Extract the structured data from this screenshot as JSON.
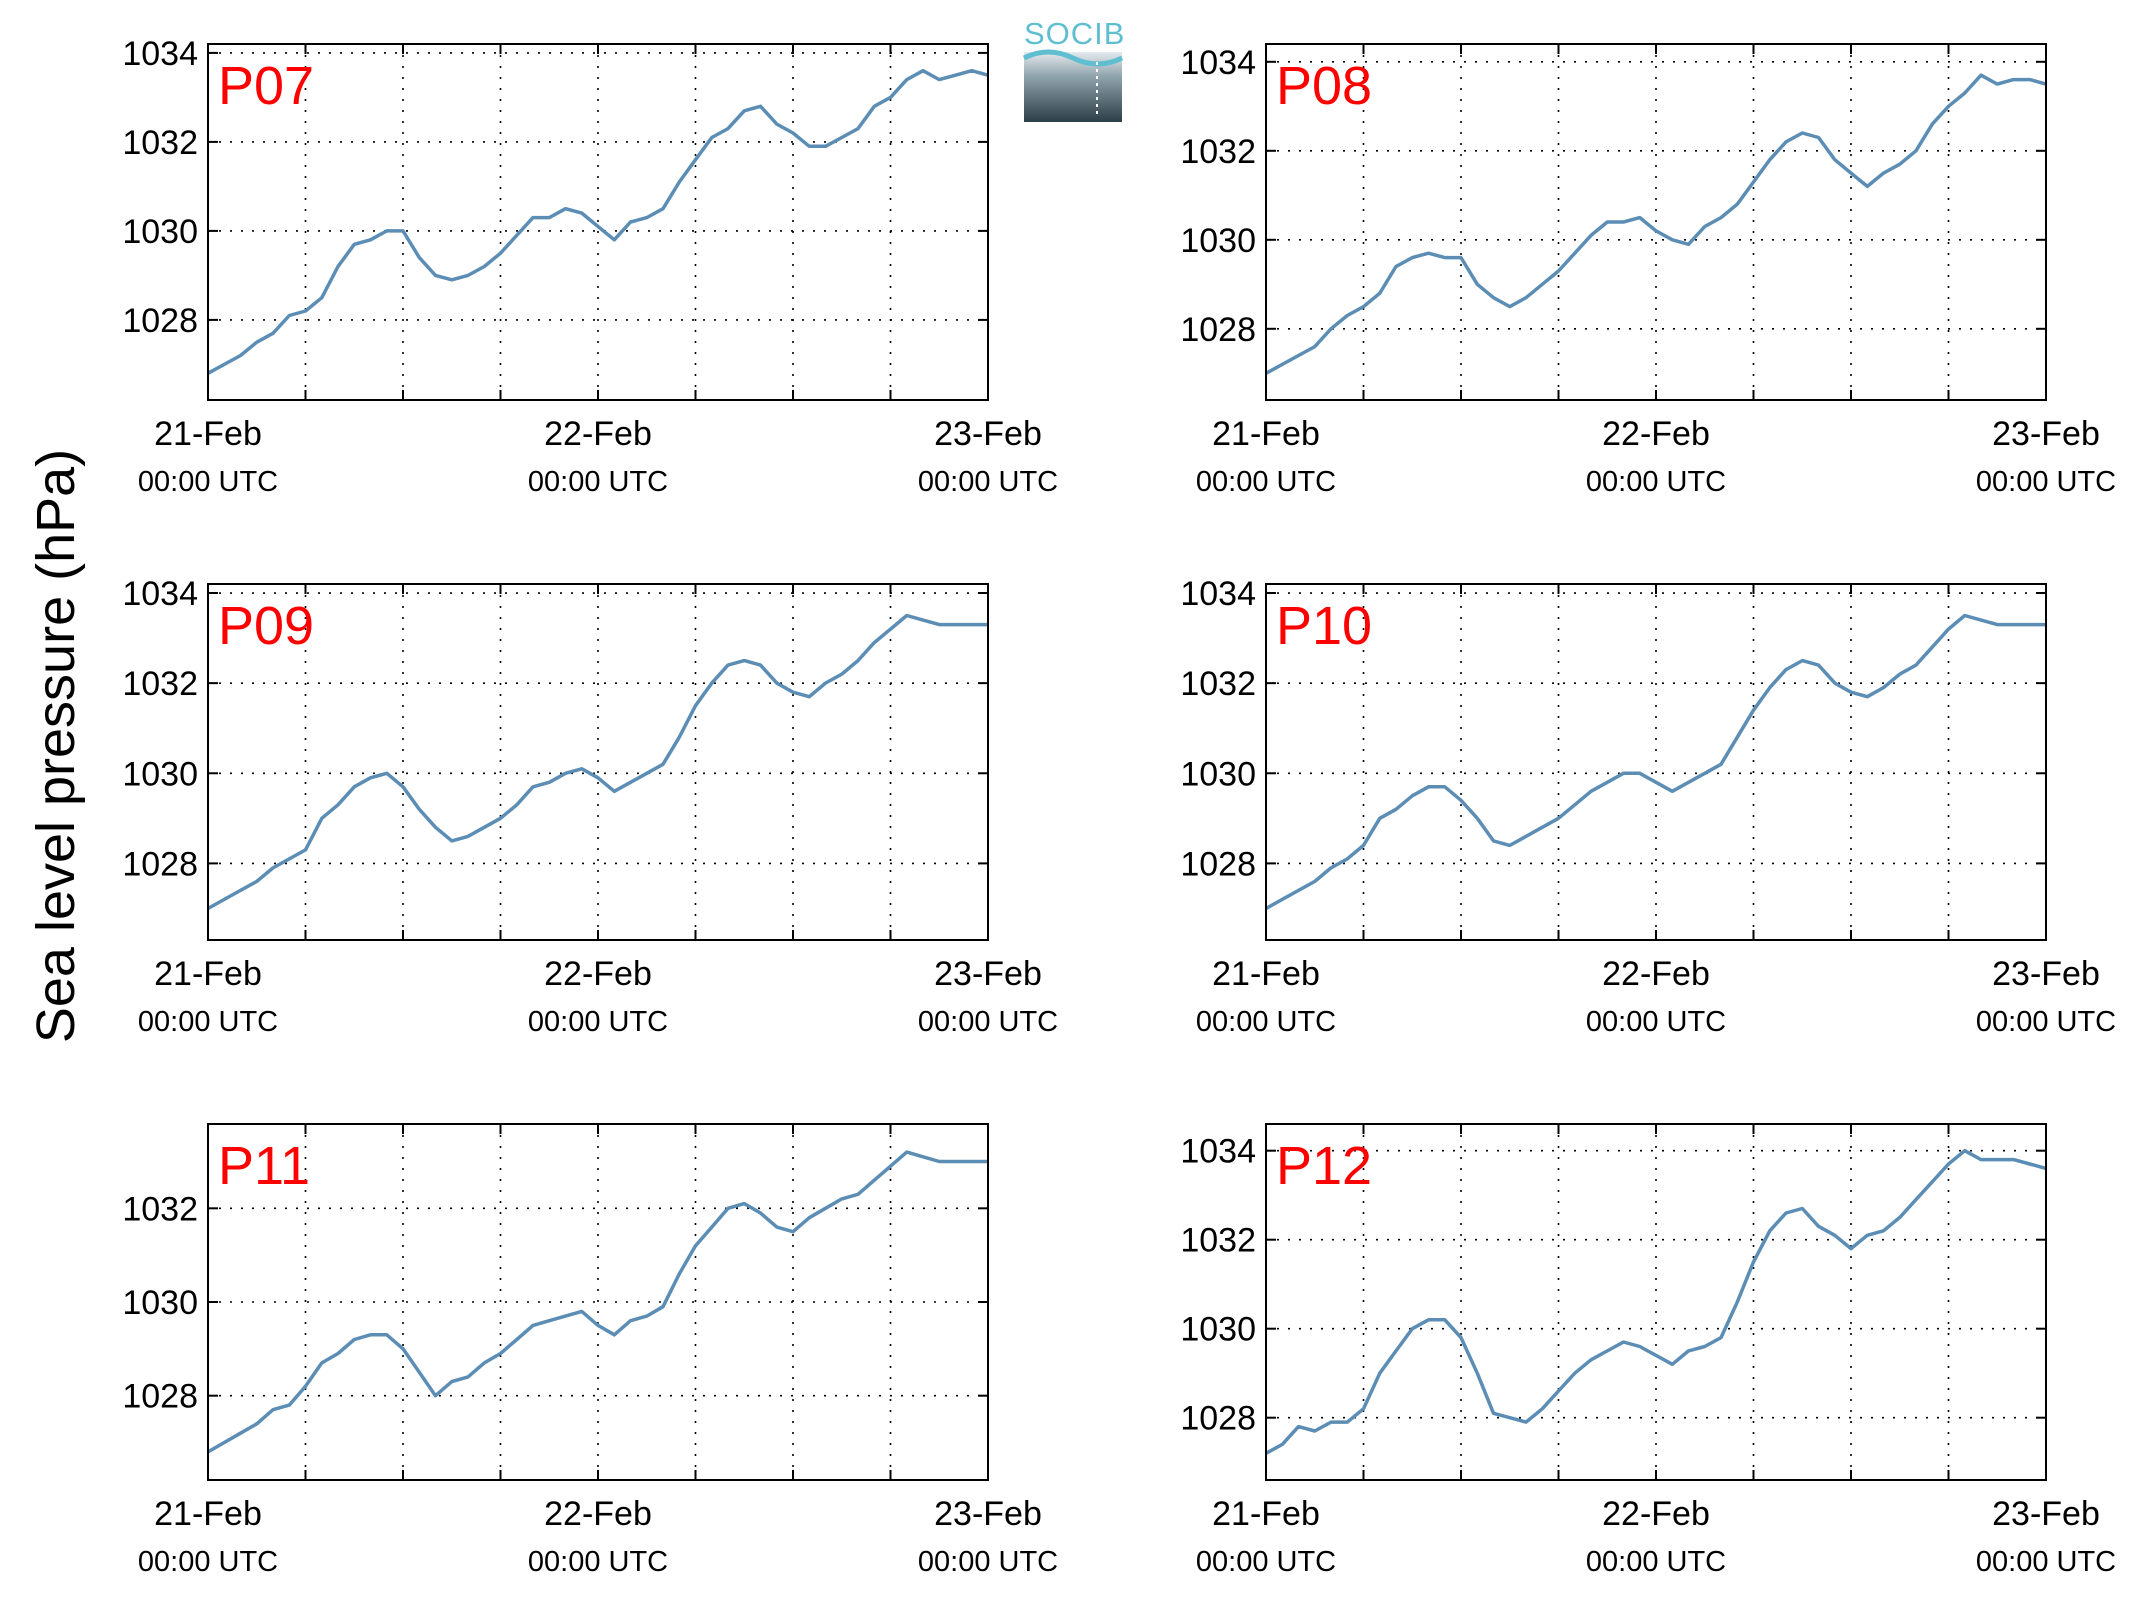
{
  "figure": {
    "ylabel": "Sea level pressure (hPa)",
    "logo_text": "SOCIB",
    "line_color": "#5b8db5",
    "label_color": "#ff0000"
  },
  "chart_data": [
    {
      "type": "line",
      "panel": "P07",
      "x_ticks": [
        {
          "date": "21-Feb",
          "time": "00:00 UTC"
        },
        {
          "date": "22-Feb",
          "time": "00:00 UTC"
        },
        {
          "date": "23-Feb",
          "time": "00:00 UTC"
        }
      ],
      "y_ticks": [
        1028,
        1030,
        1032,
        1034
      ],
      "xlim": [
        0,
        48
      ],
      "ylim": [
        1026.2,
        1034.2
      ],
      "grid": true,
      "series": [
        {
          "x": [
            0,
            1,
            2,
            3,
            4,
            5,
            6,
            7,
            8,
            9,
            10,
            11,
            12,
            13,
            14,
            15,
            16,
            17,
            18,
            19,
            20,
            21,
            22,
            23,
            24,
            25,
            26,
            27,
            28,
            29,
            30,
            31,
            32,
            33,
            34,
            35,
            36,
            37,
            38,
            39,
            40,
            41,
            42,
            43,
            44,
            45,
            46,
            47,
            48
          ],
          "y": [
            1026.8,
            1027.0,
            1027.2,
            1027.5,
            1027.7,
            1028.1,
            1028.2,
            1028.5,
            1029.2,
            1029.7,
            1029.8,
            1030.0,
            1030.0,
            1029.4,
            1029.0,
            1028.9,
            1029.0,
            1029.2,
            1029.5,
            1029.9,
            1030.3,
            1030.3,
            1030.5,
            1030.4,
            1030.1,
            1029.8,
            1030.2,
            1030.3,
            1030.5,
            1031.1,
            1031.6,
            1032.1,
            1032.3,
            1032.7,
            1032.8,
            1032.4,
            1032.2,
            1031.9,
            1031.9,
            1032.1,
            1032.3,
            1032.8,
            1033.0,
            1033.4,
            1033.6,
            1033.4,
            1033.5,
            1033.6,
            1033.5
          ]
        }
      ]
    },
    {
      "type": "line",
      "panel": "P08",
      "x_ticks": [
        {
          "date": "21-Feb",
          "time": "00:00 UTC"
        },
        {
          "date": "22-Feb",
          "time": "00:00 UTC"
        },
        {
          "date": "23-Feb",
          "time": "00:00 UTC"
        }
      ],
      "y_ticks": [
        1028,
        1030,
        1032,
        1034
      ],
      "xlim": [
        0,
        48
      ],
      "ylim": [
        1026.4,
        1034.4
      ],
      "grid": true,
      "series": [
        {
          "x": [
            0,
            1,
            2,
            3,
            4,
            5,
            6,
            7,
            8,
            9,
            10,
            11,
            12,
            13,
            14,
            15,
            16,
            17,
            18,
            19,
            20,
            21,
            22,
            23,
            24,
            25,
            26,
            27,
            28,
            29,
            30,
            31,
            32,
            33,
            34,
            35,
            36,
            37,
            38,
            39,
            40,
            41,
            42,
            43,
            44,
            45,
            46,
            47,
            48
          ],
          "y": [
            1027.0,
            1027.2,
            1027.4,
            1027.6,
            1028.0,
            1028.3,
            1028.5,
            1028.8,
            1029.4,
            1029.6,
            1029.7,
            1029.6,
            1029.6,
            1029.0,
            1028.7,
            1028.5,
            1028.7,
            1029.0,
            1029.3,
            1029.7,
            1030.1,
            1030.4,
            1030.4,
            1030.5,
            1030.2,
            1030.0,
            1029.9,
            1030.3,
            1030.5,
            1030.8,
            1031.3,
            1031.8,
            1032.2,
            1032.4,
            1032.3,
            1031.8,
            1031.5,
            1031.2,
            1031.5,
            1031.7,
            1032.0,
            1032.6,
            1033.0,
            1033.3,
            1033.7,
            1033.5,
            1033.6,
            1033.6,
            1033.5
          ]
        }
      ]
    },
    {
      "type": "line",
      "panel": "P09",
      "x_ticks": [
        {
          "date": "21-Feb",
          "time": "00:00 UTC"
        },
        {
          "date": "22-Feb",
          "time": "00:00 UTC"
        },
        {
          "date": "23-Feb",
          "time": "00:00 UTC"
        }
      ],
      "y_ticks": [
        1028,
        1030,
        1032,
        1034
      ],
      "xlim": [
        0,
        48
      ],
      "ylim": [
        1026.3,
        1034.2
      ],
      "grid": true,
      "series": [
        {
          "x": [
            0,
            1,
            2,
            3,
            4,
            5,
            6,
            7,
            8,
            9,
            10,
            11,
            12,
            13,
            14,
            15,
            16,
            17,
            18,
            19,
            20,
            21,
            22,
            23,
            24,
            25,
            26,
            27,
            28,
            29,
            30,
            31,
            32,
            33,
            34,
            35,
            36,
            37,
            38,
            39,
            40,
            41,
            42,
            43,
            44,
            45,
            46,
            47,
            48
          ],
          "y": [
            1027.0,
            1027.2,
            1027.4,
            1027.6,
            1027.9,
            1028.1,
            1028.3,
            1029.0,
            1029.3,
            1029.7,
            1029.9,
            1030.0,
            1029.7,
            1029.2,
            1028.8,
            1028.5,
            1028.6,
            1028.8,
            1029.0,
            1029.3,
            1029.7,
            1029.8,
            1030.0,
            1030.1,
            1029.9,
            1029.6,
            1029.8,
            1030.0,
            1030.2,
            1030.8,
            1031.5,
            1032.0,
            1032.4,
            1032.5,
            1032.4,
            1032.0,
            1031.8,
            1031.7,
            1032.0,
            1032.2,
            1032.5,
            1032.9,
            1033.2,
            1033.5,
            1033.4,
            1033.3,
            1033.3,
            1033.3,
            1033.3
          ]
        }
      ]
    },
    {
      "type": "line",
      "panel": "P10",
      "x_ticks": [
        {
          "date": "21-Feb",
          "time": "00:00 UTC"
        },
        {
          "date": "22-Feb",
          "time": "00:00 UTC"
        },
        {
          "date": "23-Feb",
          "time": "00:00 UTC"
        }
      ],
      "y_ticks": [
        1028,
        1030,
        1032,
        1034
      ],
      "xlim": [
        0,
        48
      ],
      "ylim": [
        1026.3,
        1034.2
      ],
      "grid": true,
      "series": [
        {
          "x": [
            0,
            1,
            2,
            3,
            4,
            5,
            6,
            7,
            8,
            9,
            10,
            11,
            12,
            13,
            14,
            15,
            16,
            17,
            18,
            19,
            20,
            21,
            22,
            23,
            24,
            25,
            26,
            27,
            28,
            29,
            30,
            31,
            32,
            33,
            34,
            35,
            36,
            37,
            38,
            39,
            40,
            41,
            42,
            43,
            44,
            45,
            46,
            47,
            48
          ],
          "y": [
            1027.0,
            1027.2,
            1027.4,
            1027.6,
            1027.9,
            1028.1,
            1028.4,
            1029.0,
            1029.2,
            1029.5,
            1029.7,
            1029.7,
            1029.4,
            1029.0,
            1028.5,
            1028.4,
            1028.6,
            1028.8,
            1029.0,
            1029.3,
            1029.6,
            1029.8,
            1030.0,
            1030.0,
            1029.8,
            1029.6,
            1029.8,
            1030.0,
            1030.2,
            1030.8,
            1031.4,
            1031.9,
            1032.3,
            1032.5,
            1032.4,
            1032.0,
            1031.8,
            1031.7,
            1031.9,
            1032.2,
            1032.4,
            1032.8,
            1033.2,
            1033.5,
            1033.4,
            1033.3,
            1033.3,
            1033.3,
            1033.3
          ]
        }
      ]
    },
    {
      "type": "line",
      "panel": "P11",
      "x_ticks": [
        {
          "date": "21-Feb",
          "time": "00:00 UTC"
        },
        {
          "date": "22-Feb",
          "time": "00:00 UTC"
        },
        {
          "date": "23-Feb",
          "time": "00:00 UTC"
        }
      ],
      "y_ticks": [
        1028,
        1030,
        1032
      ],
      "xlim": [
        0,
        48
      ],
      "ylim": [
        1026.2,
        1033.8
      ],
      "grid": true,
      "series": [
        {
          "x": [
            0,
            1,
            2,
            3,
            4,
            5,
            6,
            7,
            8,
            9,
            10,
            11,
            12,
            13,
            14,
            15,
            16,
            17,
            18,
            19,
            20,
            21,
            22,
            23,
            24,
            25,
            26,
            27,
            28,
            29,
            30,
            31,
            32,
            33,
            34,
            35,
            36,
            37,
            38,
            39,
            40,
            41,
            42,
            43,
            44,
            45,
            46,
            47,
            48
          ],
          "y": [
            1026.8,
            1027.0,
            1027.2,
            1027.4,
            1027.7,
            1027.8,
            1028.2,
            1028.7,
            1028.9,
            1029.2,
            1029.3,
            1029.3,
            1029.0,
            1028.5,
            1028.0,
            1028.3,
            1028.4,
            1028.7,
            1028.9,
            1029.2,
            1029.5,
            1029.6,
            1029.7,
            1029.8,
            1029.5,
            1029.3,
            1029.6,
            1029.7,
            1029.9,
            1030.6,
            1031.2,
            1031.6,
            1032.0,
            1032.1,
            1031.9,
            1031.6,
            1031.5,
            1031.8,
            1032.0,
            1032.2,
            1032.3,
            1032.6,
            1032.9,
            1033.2,
            1033.1,
            1033.0,
            1033.0,
            1033.0,
            1033.0
          ]
        }
      ]
    },
    {
      "type": "line",
      "panel": "P12",
      "x_ticks": [
        {
          "date": "21-Feb",
          "time": "00:00 UTC"
        },
        {
          "date": "22-Feb",
          "time": "00:00 UTC"
        },
        {
          "date": "23-Feb",
          "time": "00:00 UTC"
        }
      ],
      "y_ticks": [
        1028,
        1030,
        1032,
        1034
      ],
      "xlim": [
        0,
        48
      ],
      "ylim": [
        1026.6,
        1034.6
      ],
      "grid": true,
      "series": [
        {
          "x": [
            0,
            1,
            2,
            3,
            4,
            5,
            6,
            7,
            8,
            9,
            10,
            11,
            12,
            13,
            14,
            15,
            16,
            17,
            18,
            19,
            20,
            21,
            22,
            23,
            24,
            25,
            26,
            27,
            28,
            29,
            30,
            31,
            32,
            33,
            34,
            35,
            36,
            37,
            38,
            39,
            40,
            41,
            42,
            43,
            44,
            45,
            46,
            47,
            48
          ],
          "y": [
            1027.2,
            1027.4,
            1027.8,
            1027.7,
            1027.9,
            1027.9,
            1028.2,
            1029.0,
            1029.5,
            1030.0,
            1030.2,
            1030.2,
            1029.8,
            1029.0,
            1028.1,
            1028.0,
            1027.9,
            1028.2,
            1028.6,
            1029.0,
            1029.3,
            1029.5,
            1029.7,
            1029.6,
            1029.4,
            1029.2,
            1029.5,
            1029.6,
            1029.8,
            1030.6,
            1031.5,
            1032.2,
            1032.6,
            1032.7,
            1032.3,
            1032.1,
            1031.8,
            1032.1,
            1032.2,
            1032.5,
            1032.9,
            1033.3,
            1033.7,
            1034.0,
            1033.8,
            1033.8,
            1033.8,
            1033.7,
            1033.6
          ]
        }
      ]
    }
  ]
}
